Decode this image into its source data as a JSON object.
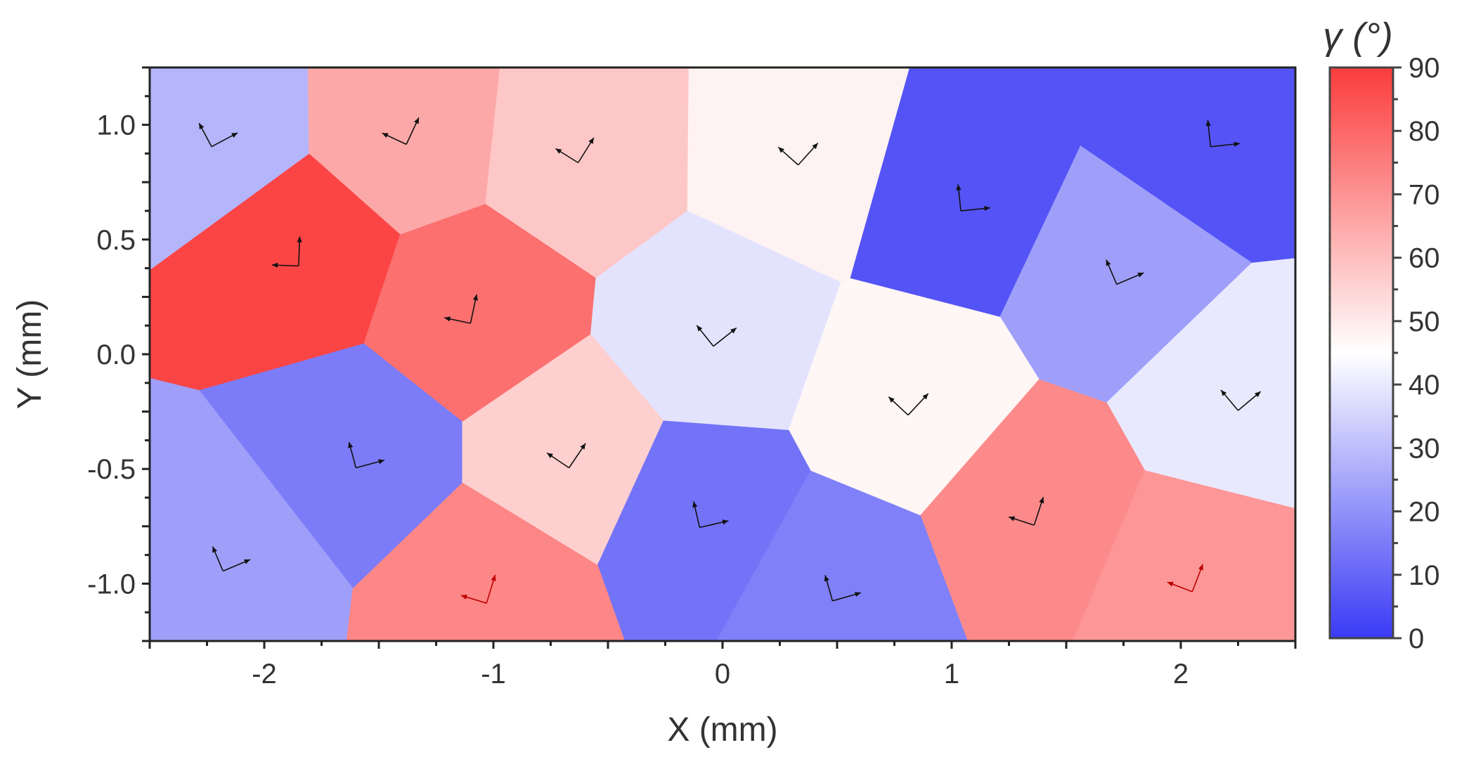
{
  "chart_data": {
    "type": "heatmap",
    "subtype": "grain orientation map (Voronoi cells) with crystal-axis arrows",
    "xlabel": "X (mm)",
    "ylabel": "Y (mm)",
    "xlim": [
      -2.5,
      2.5
    ],
    "ylim": [
      -1.25,
      1.25
    ],
    "x_ticks": [
      {
        "value": -2,
        "label": "-2"
      },
      {
        "value": -1,
        "label": "-1"
      },
      {
        "value": 0,
        "label": "0"
      },
      {
        "value": 1,
        "label": "1"
      },
      {
        "value": 2,
        "label": "2"
      }
    ],
    "y_ticks": [
      {
        "value": 1.0,
        "label": "1.0"
      },
      {
        "value": 0.5,
        "label": "0.5"
      },
      {
        "value": 0.0,
        "label": "0.0"
      },
      {
        "value": -0.5,
        "label": "-0.5"
      },
      {
        "value": -1.0,
        "label": "-1.0"
      }
    ],
    "colorbar": {
      "title": "γ (°)",
      "range": [
        0,
        90
      ],
      "ticks": [
        {
          "value": 0,
          "label": "0"
        },
        {
          "value": 10,
          "label": "10"
        },
        {
          "value": 20,
          "label": "20"
        },
        {
          "value": 30,
          "label": "30"
        },
        {
          "value": 40,
          "label": "40"
        },
        {
          "value": 50,
          "label": "50"
        },
        {
          "value": 60,
          "label": "60"
        },
        {
          "value": 70,
          "label": "70"
        },
        {
          "value": 80,
          "label": "80"
        },
        {
          "value": 90,
          "label": "90"
        }
      ],
      "colors": [
        "#3a3af5",
        "#ffffff",
        "#fb3c3c"
      ]
    },
    "grains": [
      {
        "id": "g1",
        "center": [
          -2.23,
          0.96
        ],
        "gamma": 28,
        "arrow_color": "black"
      },
      {
        "id": "g2",
        "center": [
          -1.38,
          0.97
        ],
        "gamma": 65,
        "arrow_color": "black"
      },
      {
        "id": "g3",
        "center": [
          -0.63,
          0.89
        ],
        "gamma": 58,
        "arrow_color": "black"
      },
      {
        "id": "g4",
        "center": [
          0.33,
          0.88
        ],
        "gamma": 48,
        "arrow_color": "black"
      },
      {
        "id": "g5",
        "center": [
          1.04,
          0.68
        ],
        "gamma": 6,
        "arrow_color": "black"
      },
      {
        "id": "g6",
        "center": [
          2.13,
          0.96
        ],
        "gamma": 6,
        "arrow_color": "black"
      },
      {
        "id": "g7",
        "center": [
          -1.85,
          0.44
        ],
        "gamma": 88,
        "arrow_color": "black"
      },
      {
        "id": "g8",
        "center": [
          -1.1,
          0.19
        ],
        "gamma": 78,
        "arrow_color": "black"
      },
      {
        "id": "g9",
        "center": [
          -0.04,
          0.09
        ],
        "gamma": 38.5,
        "arrow_color": "black"
      },
      {
        "id": "g10",
        "center": [
          1.72,
          0.36
        ],
        "gamma": 23,
        "arrow_color": "black"
      },
      {
        "id": "g11",
        "center": [
          2.25,
          -0.19
        ],
        "gamma": 40,
        "arrow_color": "black"
      },
      {
        "id": "g12",
        "center": [
          0.81,
          -0.21
        ],
        "gamma": 47,
        "arrow_color": "black"
      },
      {
        "id": "g13",
        "center": [
          -1.6,
          -0.44
        ],
        "gamma": 15,
        "arrow_color": "black"
      },
      {
        "id": "g14",
        "center": [
          -0.67,
          -0.44
        ],
        "gamma": 56,
        "arrow_color": "black"
      },
      {
        "id": "g15",
        "center": [
          -0.1,
          -0.7
        ],
        "gamma": 13,
        "arrow_color": "black"
      },
      {
        "id": "g16",
        "center": [
          1.36,
          -0.69
        ],
        "gamma": 72,
        "arrow_color": "black"
      },
      {
        "id": "g17",
        "center": [
          -2.18,
          -0.89
        ],
        "gamma": 23,
        "arrow_color": "black"
      },
      {
        "id": "g18",
        "center": [
          -1.03,
          -1.03
        ],
        "gamma": 73,
        "arrow_color": "red"
      },
      {
        "id": "g19",
        "center": [
          0.48,
          -1.02
        ],
        "gamma": 16,
        "arrow_color": "black"
      },
      {
        "id": "g20",
        "center": [
          2.05,
          -0.98
        ],
        "gamma": 69,
        "arrow_color": "red"
      }
    ]
  }
}
